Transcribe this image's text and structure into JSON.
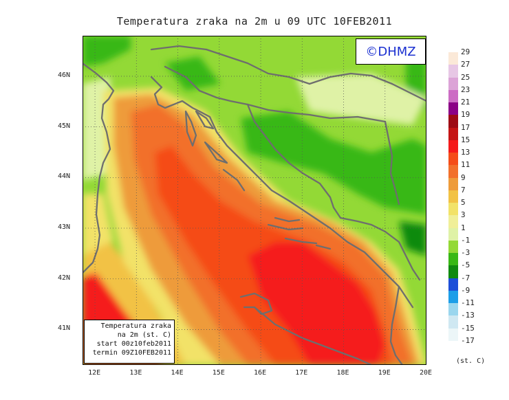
{
  "title": "Temperatura zraka na 2m u 09 UTC 10FEB2011",
  "logo": "©DHMZ",
  "infobox": [
    "Temperatura zraka",
    "na 2m (st. C)",
    "start 00z10feb2011",
    "termin 09Z10FEB2011"
  ],
  "map": {
    "lat_labels": [
      "46N",
      "45N",
      "44N",
      "43N",
      "42N",
      "41N"
    ],
    "lon_labels": [
      "12E",
      "13E",
      "14E",
      "15E",
      "16E",
      "17E",
      "18E",
      "19E",
      "20E"
    ],
    "lat_values": [
      46,
      45,
      44,
      43,
      42,
      41
    ],
    "lon_values": [
      12,
      13,
      14,
      15,
      16,
      17,
      18,
      19,
      20
    ],
    "lat_range": [
      40.3,
      46.8
    ],
    "lon_range": [
      11.7,
      20.0
    ],
    "coastline_color": "#6e6e6e"
  },
  "legend": {
    "units": "(st. C)",
    "labels": [
      "29",
      "27",
      "25",
      "23",
      "21",
      "19",
      "17",
      "15",
      "13",
      "11",
      "9",
      "7",
      "5",
      "3",
      "1",
      "-1",
      "-3",
      "-5",
      "-7",
      "-9",
      "-11",
      "-13",
      "-15",
      "-17"
    ],
    "colors": [
      "#fbe9d8",
      "#e7c7e5",
      "#dca3d7",
      "#cc6cc4",
      "#8b0086",
      "#9e0a14",
      "#c51414",
      "#f51a1a",
      "#f54c18",
      "#f2702b",
      "#ee9b3a",
      "#f2c244",
      "#f2e268",
      "#f0ef98",
      "#dff2a6",
      "#93d936",
      "#38b815",
      "#108a10",
      "#1c4ed8",
      "#1c9ee8",
      "#9ad6ee",
      "#cfe8f2",
      "#ecf6f8"
    ]
  }
}
